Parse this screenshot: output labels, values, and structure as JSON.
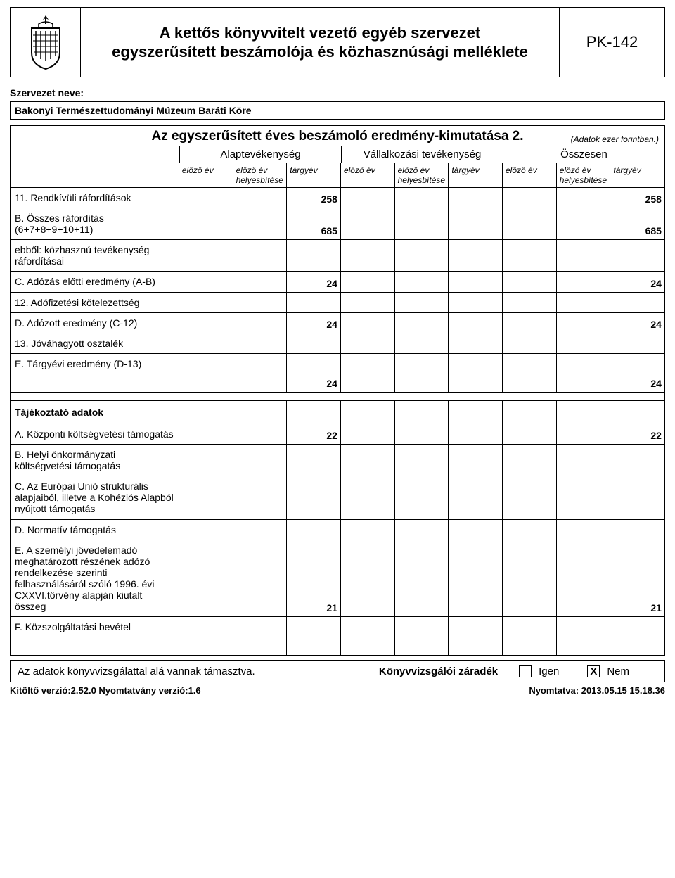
{
  "header": {
    "title_line1": "A kettős könyvvitelt vezető egyéb szervezet",
    "title_line2": "egyszerűsített beszámolója és közhasznúsági melléklete",
    "form_code": "PK-142"
  },
  "org": {
    "label": "Szervezet neve:",
    "name": "Bakonyi Természettudományi Múzeum Baráti Köre"
  },
  "section": {
    "title": "Az egyszerűsített éves beszámoló eredmény-kimutatása 2.",
    "note": "(Adatok ezer forintban.)"
  },
  "group_headers": [
    "Alaptevékenység",
    "Vállalkozási tevékenység",
    "Összesen"
  ],
  "sub_headers": [
    "előző év",
    "előző év helyesbítése",
    "tárgyév"
  ],
  "rows": [
    {
      "label": "11. Rendkívüli ráfordítások",
      "v": [
        "",
        "",
        "258",
        "",
        "",
        "",
        "",
        "",
        "258"
      ]
    },
    {
      "label": "B. Összes ráfordítás (6+7+8+9+10+11)",
      "v": [
        "",
        "",
        "685",
        "",
        "",
        "",
        "",
        "",
        "685"
      ]
    },
    {
      "label": "ebből: közhasznú tevékenység ráfordításai",
      "v": [
        "",
        "",
        "",
        "",
        "",
        "",
        "",
        "",
        ""
      ]
    },
    {
      "label": "C. Adózás előtti eredmény (A-B)",
      "v": [
        "",
        "",
        "24",
        "",
        "",
        "",
        "",
        "",
        "24"
      ]
    },
    {
      "label": "12. Adófizetési kötelezettség",
      "v": [
        "",
        "",
        "",
        "",
        "",
        "",
        "",
        "",
        ""
      ]
    },
    {
      "label": "D. Adózott eredmény (C-12)",
      "v": [
        "",
        "",
        "24",
        "",
        "",
        "",
        "",
        "",
        "24"
      ]
    },
    {
      "label": "13. Jóváhagyott osztalék",
      "v": [
        "",
        "",
        "",
        "",
        "",
        "",
        "",
        "",
        ""
      ]
    },
    {
      "label": "E. Tárgyévi eredmény (D-13)",
      "v": [
        "",
        "",
        "24",
        "",
        "",
        "",
        "",
        "",
        "24"
      ],
      "tall": true
    }
  ],
  "info_header": "Tájékoztató adatok",
  "info_rows": [
    {
      "label": "A. Központi költségvetési támogatás",
      "v": [
        "",
        "",
        "22",
        "",
        "",
        "",
        "",
        "",
        "22"
      ]
    },
    {
      "label": "B. Helyi önkormányzati költségvetési támogatás",
      "v": [
        "",
        "",
        "",
        "",
        "",
        "",
        "",
        "",
        ""
      ]
    },
    {
      "label": "C. Az Európai Unió strukturális alapjaiból, illetve a Kohéziós Alapból nyújtott támogatás",
      "v": [
        "",
        "",
        "",
        "",
        "",
        "",
        "",
        "",
        ""
      ],
      "tall": true
    },
    {
      "label": "D. Normatív támogatás",
      "v": [
        "",
        "",
        "",
        "",
        "",
        "",
        "",
        "",
        ""
      ]
    },
    {
      "label": "E. A személyi jövedelemadó meghatározott részének adózó rendelkezése szerinti felhasználásáról szóló 1996. évi CXXVI.törvény alapján kiutalt összeg",
      "v": [
        "",
        "",
        "21",
        "",
        "",
        "",
        "",
        "",
        "21"
      ],
      "xtall": true
    },
    {
      "label": "F. Közszolgáltatási bevétel",
      "v": [
        "",
        "",
        "",
        "",
        "",
        "",
        "",
        "",
        ""
      ],
      "tall": true
    }
  ],
  "audit": {
    "text": "Az adatok könyvvizsgálattal alá vannak támasztva.",
    "label": "Könyvvizsgálói záradék",
    "yes": "Igen",
    "no": "Nem",
    "checked": "no"
  },
  "footer": {
    "left": "Kitöltő verzió:2.52.0 Nyomtatvány verzió:1.6",
    "right": "Nyomtatva: 2013.05.15 15.18.36"
  }
}
